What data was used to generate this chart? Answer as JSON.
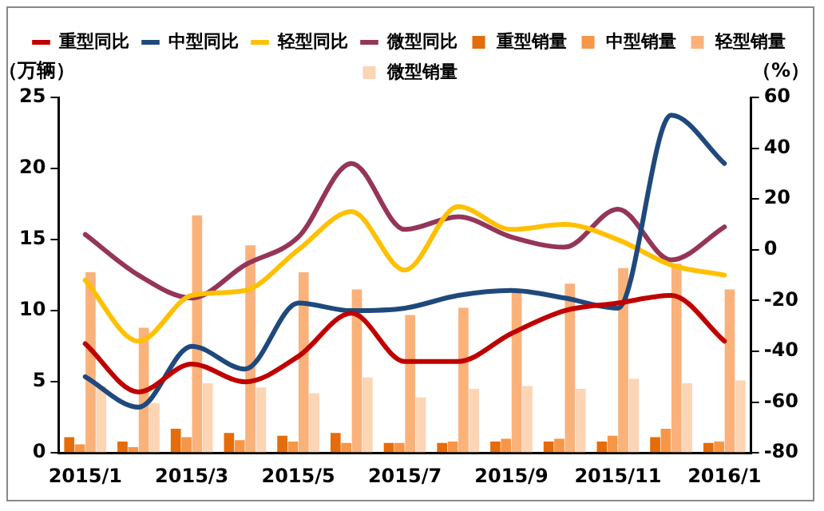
{
  "chart_data": {
    "type": "bar",
    "ylabel": "（万辆）",
    "y2label": "（%）",
    "categories": [
      "2015/1",
      null,
      "2015/3",
      null,
      "2015/5",
      null,
      "2015/7",
      null,
      "2015/9",
      null,
      "2015/11",
      null,
      "2016/1"
    ],
    "series": [
      {
        "name": "重型销量",
        "color": "#e46c0a",
        "values": [
          1.1,
          0.8,
          1.7,
          1.4,
          1.2,
          1.4,
          0.7,
          0.7,
          0.8,
          0.8,
          0.8,
          1.1,
          0.7
        ]
      },
      {
        "name": "中型销量",
        "color": "#f79646",
        "values": [
          0.6,
          0.4,
          1.1,
          0.9,
          0.8,
          0.7,
          0.7,
          0.8,
          1.0,
          1.0,
          1.2,
          1.7,
          0.8
        ]
      },
      {
        "name": "轻型销量",
        "color": "#fab27a",
        "values": [
          12.7,
          8.8,
          16.7,
          14.6,
          12.7,
          11.5,
          9.7,
          10.2,
          11.4,
          11.9,
          13.0,
          13.3,
          11.5
        ]
      },
      {
        "name": "微型销量",
        "color": "#fcd5b5",
        "values": [
          4.7,
          3.5,
          4.9,
          4.6,
          4.2,
          5.3,
          3.9,
          4.5,
          4.7,
          4.5,
          5.2,
          4.9,
          5.1
        ]
      },
      {
        "name": "重型同比",
        "type": "line",
        "axis": "y2",
        "color": "#c00000",
        "values": [
          -37,
          -56,
          -45,
          -52,
          -42,
          -25,
          -44,
          -44,
          -33,
          -24,
          -21,
          -18,
          -36
        ]
      },
      {
        "name": "中型同比",
        "type": "line",
        "axis": "y2",
        "color": "#1f497d",
        "values": [
          -50,
          -62,
          -38,
          -47,
          -21,
          -24,
          -23,
          -18,
          -16,
          -19,
          -23,
          53,
          34
        ]
      },
      {
        "name": "轻型同比",
        "type": "line",
        "axis": "y2",
        "color": "#ffc000",
        "values": [
          -12,
          -36,
          -18,
          -16,
          0,
          15,
          -8,
          17,
          8,
          10,
          4,
          -6,
          -10
        ]
      },
      {
        "name": "微型同比",
        "type": "line",
        "axis": "y2",
        "color": "#953559",
        "values": [
          6,
          -10,
          -19,
          -6,
          5,
          34,
          8,
          13,
          5,
          1,
          16,
          -4,
          9
        ]
      }
    ],
    "ylim": [
      0,
      25
    ],
    "yticks": [
      0,
      5,
      10,
      15,
      20,
      25
    ],
    "y2lim": [
      -80,
      60
    ],
    "y2ticks": [
      -80,
      -60,
      -40,
      -20,
      0,
      20,
      40,
      60
    ],
    "grid": false,
    "legend": "top",
    "marker": "none",
    "line_style": "solid"
  }
}
